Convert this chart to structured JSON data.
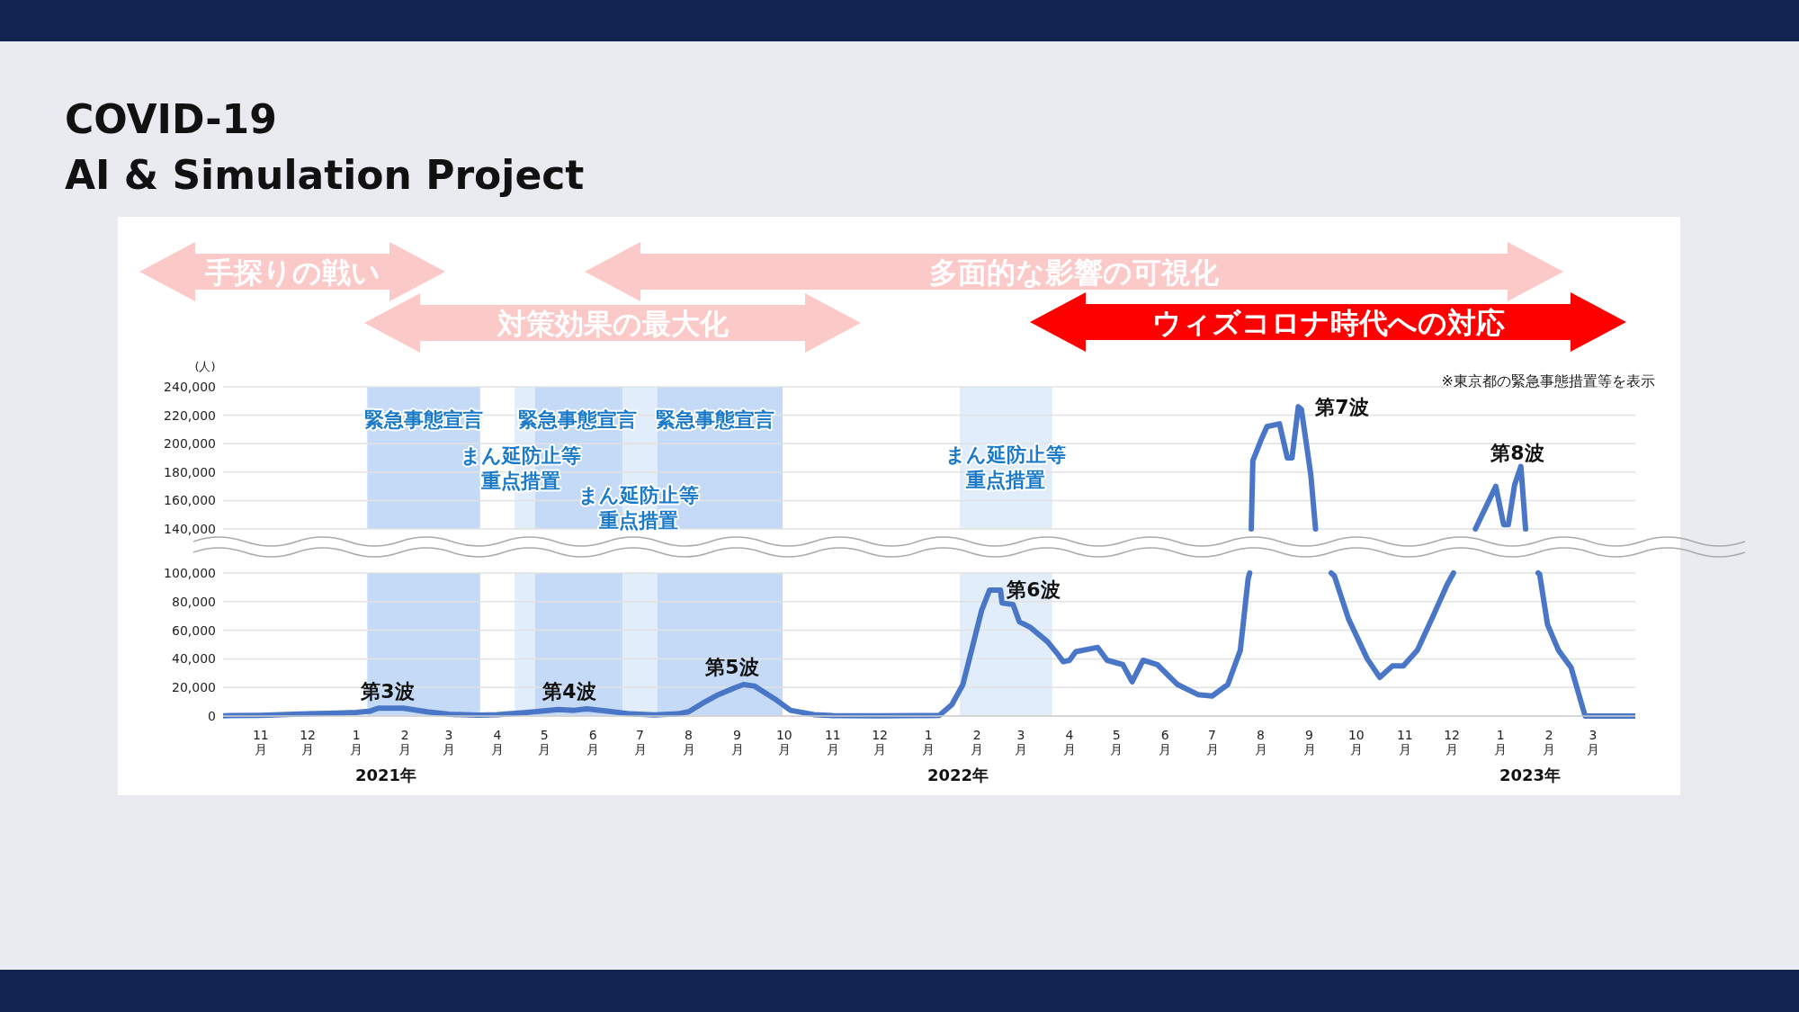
{
  "chart_data": [
    {
      "type": "line",
      "title": "COVID-19\nAI & Simulation Project",
      "ylabel": "(人)",
      "tick_labels": "y",
      "grid": "y",
      "xlim": [
        "2020-10-08",
        "2023-03-28"
      ],
      "ylim": [
        140000,
        240000
      ],
      "yticks": [
        {
          "value": 140000,
          "label": "140,000"
        },
        {
          "value": 160000,
          "label": "160,000"
        },
        {
          "value": 180000,
          "label": "180,000"
        },
        {
          "value": 200000,
          "label": "200,000"
        },
        {
          "value": 220000,
          "label": "220,000"
        },
        {
          "value": 240000,
          "label": "240,000"
        }
      ],
      "series": [
        {
          "color": "#4a76c8",
          "x": [
            "2022-07-26",
            "2022-07-27",
            "2022-08-01",
            "2022-08-05",
            "2022-08-13",
            "2022-08-18",
            "2022-08-21",
            "2022-08-25",
            "2022-08-27",
            "2022-09-02",
            "2022-09-05"
          ],
          "values": [
            140000,
            188000,
            202000,
            212000,
            214000,
            190000,
            190000,
            226000,
            224000,
            178000,
            140000
          ]
        },
        {
          "color": "#4a76c8",
          "x": [
            "2022-12-16",
            "2022-12-29",
            "2023-01-03",
            "2023-01-06",
            "2023-01-10",
            "2023-01-14",
            "2023-01-17"
          ],
          "values": [
            140000,
            170000,
            143000,
            143000,
            171000,
            184000,
            140000
          ]
        }
      ],
      "bands": [
        {
          "axis": "x",
          "from": "2021-01-08",
          "to": "2021-03-21",
          "color": "#c4daf6"
        },
        {
          "axis": "x",
          "from": "2021-04-12",
          "to": "2021-04-25",
          "color": "#e2edfb"
        },
        {
          "axis": "x",
          "from": "2021-04-25",
          "to": "2021-06-20",
          "color": "#c4daf6"
        },
        {
          "axis": "x",
          "from": "2021-06-20",
          "to": "2021-07-12",
          "color": "#e2edfb"
        },
        {
          "axis": "x",
          "from": "2021-07-12",
          "to": "2021-09-30",
          "color": "#c4daf6"
        },
        {
          "axis": "x",
          "from": "2022-01-21",
          "to": "2022-03-21",
          "color": "#e2edfb"
        }
      ],
      "annotations": [
        "手探りの戦い",
        "多面的な影響の可視化",
        "対策効果の最大化",
        "ウィズコロナ時代への対応",
        "※東京都の緊急事態措置等を表示",
        "緊急事態宣言",
        "まん延防止等重点措置",
        "緊急事態宣言",
        "まん延防止等重点措置",
        "緊急事態宣言",
        "まん延防止等重点措置",
        "第7波",
        "第8波"
      ]
    },
    {
      "type": "line",
      "grid": "y",
      "xlim": [
        "2020-10-08",
        "2023-03-28"
      ],
      "ylim": [
        0,
        100000
      ],
      "yticks": [
        0,
        {
          "value": 20000,
          "label": "20,000"
        },
        {
          "value": 40000,
          "label": "40,000"
        },
        {
          "value": 60000,
          "label": "60,000"
        },
        {
          "value": 80000,
          "label": "80,000"
        },
        {
          "value": 100000,
          "label": "100,000"
        }
      ],
      "xticks": [
        {
          "value": "2020-11-01",
          "label": "11月"
        },
        {
          "value": "2020-12-01",
          "label": "12月"
        },
        {
          "value": "2021-01-01",
          "label": "1月"
        },
        {
          "value": "2021-02-01",
          "label": "2月"
        },
        {
          "value": "2021-03-01",
          "label": "3月"
        },
        {
          "value": "2021-04-01",
          "label": "4月"
        },
        {
          "value": "2021-05-01",
          "label": "5月"
        },
        {
          "value": "2021-06-01",
          "label": "6月"
        },
        {
          "value": "2021-07-01",
          "label": "7月"
        },
        {
          "value": "2021-08-01",
          "label": "8月"
        },
        {
          "value": "2021-09-01",
          "label": "9月"
        },
        {
          "value": "2021-10-01",
          "label": "10月"
        },
        {
          "value": "2021-11-01",
          "label": "11月"
        },
        {
          "value": "2021-12-01",
          "label": "12月"
        },
        {
          "value": "2022-01-01",
          "label": "1月"
        },
        {
          "value": "2022-02-01",
          "label": "2月"
        },
        {
          "value": "2022-03-01",
          "label": "3月"
        },
        {
          "value": "2022-04-01",
          "label": "4月"
        },
        {
          "value": "2022-05-01",
          "label": "5月"
        },
        {
          "value": "2022-06-01",
          "label": "6月"
        },
        {
          "value": "2022-07-01",
          "label": "7月"
        },
        {
          "value": "2022-08-01",
          "label": "8月"
        },
        {
          "value": "2022-09-01",
          "label": "9月"
        },
        {
          "value": "2022-10-01",
          "label": "10月"
        },
        {
          "value": "2022-11-01",
          "label": "11月"
        },
        {
          "value": "2022-12-01",
          "label": "12月"
        },
        {
          "value": "2023-01-01",
          "label": "1月"
        },
        {
          "value": "2023-02-01",
          "label": "2月"
        },
        {
          "value": "2023-03-01",
          "label": "3月"
        }
      ],
      "series": [
        {
          "color": "#4a76c8",
          "x": [
            "2020-10-08",
            "2020-11-01",
            "2020-12-01",
            "2020-12-20",
            "2021-01-01",
            "2021-01-10",
            "2021-01-15",
            "2021-01-31",
            "2021-02-15",
            "2021-03-01",
            "2021-03-20",
            "2021-04-01",
            "2021-04-20",
            "2021-05-10",
            "2021-05-20",
            "2021-05-28",
            "2021-06-10",
            "2021-06-25",
            "2021-07-10",
            "2021-07-25",
            "2021-08-01",
            "2021-08-10",
            "2021-08-20",
            "2021-08-31",
            "2021-09-05",
            "2021-09-12",
            "2021-09-25",
            "2021-10-05",
            "2021-10-20",
            "2021-11-01",
            "2021-12-01",
            "2022-01-01",
            "2022-01-08",
            "2022-01-16",
            "2022-01-23",
            "2022-01-29",
            "2022-02-04",
            "2022-02-09",
            "2022-02-16",
            "2022-02-17",
            "2022-02-24",
            "2022-02-28",
            "2022-03-07",
            "2022-03-18",
            "2022-03-24",
            "2022-03-28",
            "2022-04-01",
            "2022-04-05",
            "2022-04-19",
            "2022-04-25",
            "2022-05-05",
            "2022-05-11",
            "2022-05-18",
            "2022-05-27",
            "2022-06-09",
            "2022-06-22",
            "2022-07-01",
            "2022-07-11",
            "2022-07-19",
            "2022-07-24",
            "2022-07-25"
          ],
          "values": [
            200,
            500,
            1500,
            2000,
            2500,
            3500,
            5500,
            5500,
            3000,
            1200,
            600,
            1000,
            2500,
            4500,
            4000,
            5000,
            3500,
            1500,
            800,
            1500,
            3000,
            9000,
            15000,
            20000,
            22000,
            21000,
            12000,
            4000,
            1000,
            300,
            200,
            300,
            500,
            8000,
            22000,
            48000,
            74000,
            88000,
            88000,
            79000,
            78000,
            66000,
            62000,
            52000,
            44000,
            38000,
            39000,
            45000,
            48000,
            39000,
            36000,
            24000,
            39000,
            36000,
            22000,
            15000,
            14000,
            22000,
            46000,
            96000,
            100000
          ]
        },
        {
          "color": "#4a76c8",
          "x": [
            "2022-09-15",
            "2022-09-17",
            "2022-09-26",
            "2022-10-08",
            "2022-10-16",
            "2022-10-24",
            "2022-10-31",
            "2022-11-09",
            "2022-11-19",
            "2022-11-28",
            "2022-12-02"
          ],
          "values": [
            100000,
            98000,
            68000,
            40000,
            27000,
            35000,
            35000,
            46000,
            70000,
            92000,
            100000
          ]
        },
        {
          "color": "#4a76c8",
          "x": [
            "2023-01-25",
            "2023-01-26",
            "2023-01-31",
            "2023-02-07",
            "2023-02-15",
            "2023-02-24",
            "2023-03-28"
          ],
          "values": [
            100000,
            99000,
            64000,
            46000,
            34000,
            0,
            0
          ]
        }
      ],
      "bands": [
        {
          "axis": "x",
          "from": "2021-01-08",
          "to": "2021-03-21",
          "color": "#c4daf6"
        },
        {
          "axis": "x",
          "from": "2021-04-12",
          "to": "2021-04-25",
          "color": "#e2edfb"
        },
        {
          "axis": "x",
          "from": "2021-04-25",
          "to": "2021-06-20",
          "color": "#c4daf6"
        },
        {
          "axis": "x",
          "from": "2021-06-20",
          "to": "2021-07-12",
          "color": "#e2edfb"
        },
        {
          "axis": "x",
          "from": "2021-07-12",
          "to": "2021-09-30",
          "color": "#c4daf6"
        },
        {
          "axis": "x",
          "from": "2022-01-21",
          "to": "2022-03-21",
          "color": "#e2edfb"
        }
      ],
      "annotations": [
        "第3波",
        "第4波",
        "第5波",
        "第6波",
        "2021年",
        "2022年",
        "2023年"
      ]
    }
  ]
}
